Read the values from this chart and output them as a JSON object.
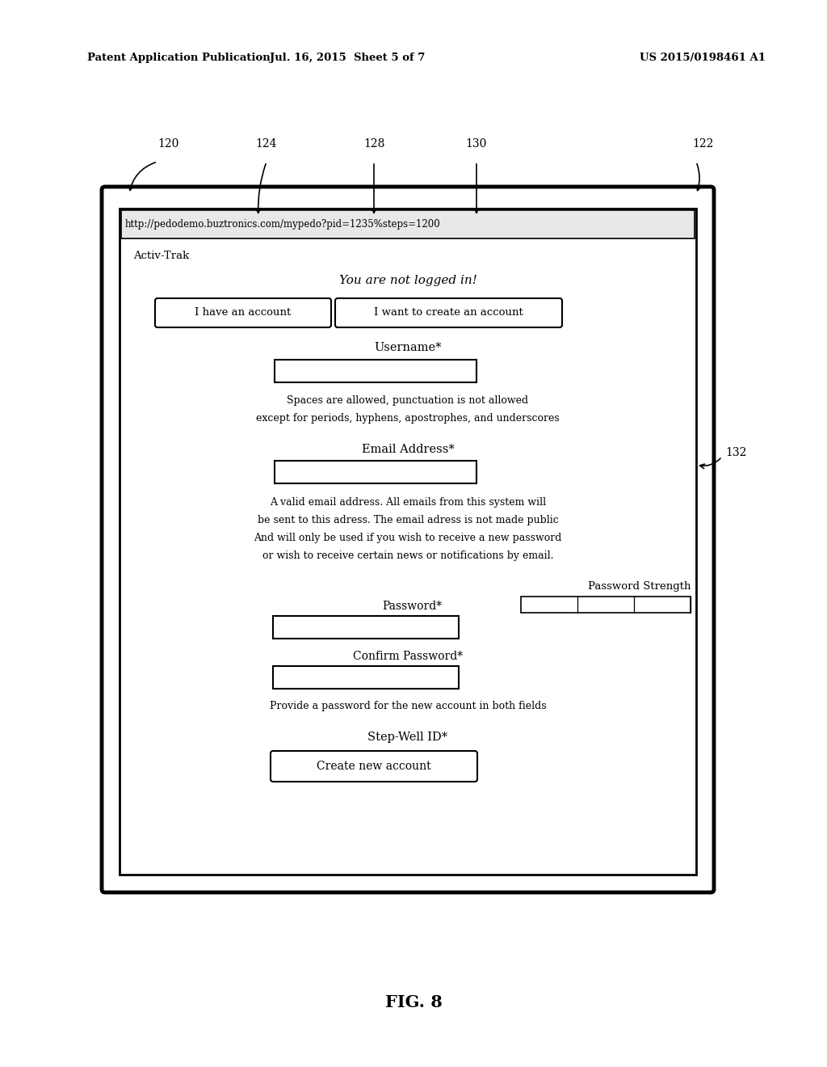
{
  "bg_color": "#ffffff",
  "header_left": "Patent Application Publication",
  "header_mid": "Jul. 16, 2015  Sheet 5 of 7",
  "header_right": "US 2015/0198461 A1",
  "fig_label": "FIG. 8",
  "url_text": "http://pedodemo.buztronics.com/mypedo?pid=1235%steps=1200",
  "activ_trak": "Activ-Trak",
  "not_logged": "You are not logged in!",
  "btn1_text": "I have an account",
  "btn2_text": "I want to create an account",
  "username_label": "Username*",
  "username_hint1": "Spaces are allowed, punctuation is not allowed",
  "username_hint2": "except for periods, hyphens, apostrophes, and underscores",
  "email_label": "Email Address*",
  "email_hint1": "A valid email address. All emails from this system will",
  "email_hint2": "be sent to this adress. The email adress is not made public",
  "email_hint3": "And will only be used if you wish to receive a new password",
  "email_hint4": "or wish to receive certain news or notifications by email.",
  "pwd_strength_label": "Password Strength",
  "pwd_label": "Password*",
  "confirm_label": "Confirm Password*",
  "pwd_hint": "Provide a password for the new account in both fields",
  "stepwell_label": "Step-Well ID*",
  "create_btn_text": "Create new account",
  "ref120": "120",
  "ref122": "122",
  "ref124": "124",
  "ref128": "128",
  "ref130": "130",
  "ref132": "132"
}
